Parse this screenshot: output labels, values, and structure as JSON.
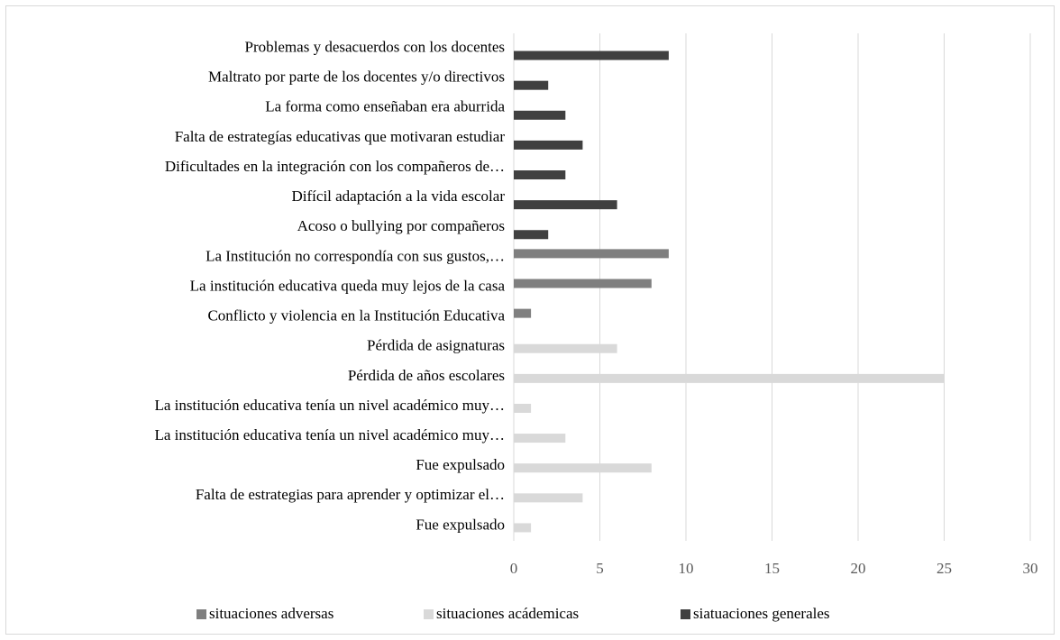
{
  "chart_data": {
    "type": "bar",
    "orientation": "horizontal",
    "categories": [
      "Problemas y desacuerdos con los docentes",
      "Maltrato por parte de los docentes y/o directivos",
      "La forma como enseñaban era aburrida",
      "Falta de estrategías educativas que motivaran estudiar",
      "Dificultades en la integración con los compañeros de…",
      "Difícil adaptación a la vida escolar",
      "Acoso o bullying por compañeros",
      "La Institución no correspondía con sus gustos,…",
      "La institución educativa queda muy lejos de la casa",
      "Conflicto y violencia en la Institución Educativa",
      "Pérdida de asignaturas",
      "Pérdida de años escolares",
      "La institución educativa tenía un nivel académico muy…",
      "La institución educativa tenía un nivel académico muy…",
      "Fue expulsado",
      "Falta de estrategias para aprender y optimizar el…",
      "Fue expulsado"
    ],
    "series": [
      {
        "name": "situaciones adversas",
        "color": "#7f7f7f",
        "values": [
          null,
          null,
          null,
          null,
          null,
          null,
          null,
          9,
          8,
          1,
          null,
          null,
          null,
          null,
          null,
          null,
          null
        ]
      },
      {
        "name": "situaciones acádemicas",
        "color": "#d9d9d9",
        "values": [
          null,
          null,
          null,
          null,
          null,
          null,
          null,
          null,
          null,
          null,
          6,
          25,
          1,
          3,
          8,
          4,
          1
        ]
      },
      {
        "name": "siatuaciones generales",
        "color": "#404040",
        "values": [
          9,
          2,
          3,
          4,
          3,
          6,
          2,
          null,
          null,
          null,
          null,
          null,
          null,
          null,
          null,
          null,
          null
        ]
      }
    ],
    "xlim": [
      0,
      30
    ],
    "xticks": [
      0,
      5,
      10,
      15,
      20,
      25,
      30
    ],
    "grid": true,
    "legend": "bottom"
  }
}
